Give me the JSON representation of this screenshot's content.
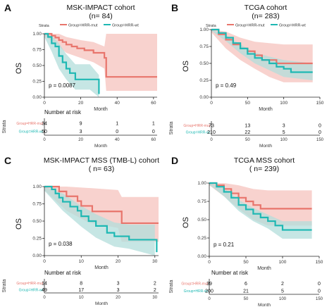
{
  "colors": {
    "mut": "#E8756C",
    "wt": "#1EB8B3",
    "mut_band": "#F6C3BD",
    "wt_band": "#B3DEDB"
  },
  "chart_data": [
    {
      "type": "line",
      "panel_label": "A",
      "title": "MSK-IMPACT cohort",
      "subtitle": "(n= 84)",
      "xlabel": "Month",
      "ylabel": "OS",
      "xlim": [
        0,
        62
      ],
      "ylim": [
        0,
        1
      ],
      "x_ticks": [
        "0",
        "20",
        "40",
        "60"
      ],
      "x_tick_values": [
        0,
        20,
        40,
        60
      ],
      "y_ticks": [
        "0.00",
        "0.25",
        "0.50",
        "0.75",
        "1.00"
      ],
      "legend_title": "Strata",
      "legend_entries": [
        "Group=HRR-mut",
        "Group=HRR-wt"
      ],
      "p_value": "p = 0.0087",
      "series": [
        {
          "name": "Group=HRR-mut",
          "color_key": "mut",
          "points": [
            [
              0,
              1
            ],
            [
              4,
              0.97
            ],
            [
              6,
              0.94
            ],
            [
              8,
              0.9
            ],
            [
              10,
              0.87
            ],
            [
              12,
              0.83
            ],
            [
              15,
              0.8
            ],
            [
              18,
              0.77
            ],
            [
              22,
              0.74
            ],
            [
              27,
              0.7
            ],
            [
              33,
              0.62
            ],
            [
              34,
              0.32
            ],
            [
              62,
              0.32
            ]
          ],
          "band_upper": [
            [
              0,
              1
            ],
            [
              8,
              1
            ],
            [
              12,
              0.95
            ],
            [
              20,
              0.9
            ],
            [
              27,
              0.87
            ],
            [
              33,
              0.8
            ],
            [
              34,
              1
            ],
            [
              62,
              1
            ]
          ],
          "band_lower": [
            [
              0,
              0.97
            ],
            [
              8,
              0.8
            ],
            [
              12,
              0.7
            ],
            [
              20,
              0.62
            ],
            [
              27,
              0.55
            ],
            [
              33,
              0.45
            ],
            [
              34,
              0.1
            ],
            [
              62,
              0.1
            ]
          ]
        },
        {
          "name": "Group=HRR-wt",
          "color_key": "wt",
          "points": [
            [
              0,
              1
            ],
            [
              2,
              0.95
            ],
            [
              4,
              0.85
            ],
            [
              6,
              0.8
            ],
            [
              8,
              0.65
            ],
            [
              10,
              0.55
            ],
            [
              12,
              0.45
            ],
            [
              14,
              0.38
            ],
            [
              17,
              0.28
            ],
            [
              25,
              0.28
            ],
            [
              30,
              0.05
            ]
          ],
          "band_upper": [
            [
              0,
              1
            ],
            [
              4,
              0.97
            ],
            [
              8,
              0.85
            ],
            [
              12,
              0.68
            ],
            [
              17,
              0.52
            ],
            [
              25,
              0.52
            ],
            [
              30,
              0.35
            ]
          ],
          "band_lower": [
            [
              0,
              0.95
            ],
            [
              4,
              0.72
            ],
            [
              8,
              0.45
            ],
            [
              12,
              0.28
            ],
            [
              17,
              0.12
            ],
            [
              25,
              0.12
            ],
            [
              30,
              0
            ]
          ]
        }
      ],
      "risk_table": {
        "title": "Number at risk",
        "row_labels": [
          "Group=HRR-mut",
          "Group=HRR-wt"
        ],
        "rows": [
          [
            "34",
            "9",
            "1",
            "1"
          ],
          [
            "50",
            "3",
            "0",
            "0"
          ]
        ],
        "xlabel": "Month",
        "ylabel": "Strata"
      }
    },
    {
      "type": "line",
      "panel_label": "B",
      "title": "TCGA cohort",
      "subtitle": "(n= 283)",
      "xlabel": "Month",
      "ylabel": "OS",
      "xlim": [
        0,
        150
      ],
      "ylim": [
        0,
        1
      ],
      "x_ticks": [
        "0",
        "50",
        "100",
        "150"
      ],
      "x_tick_values": [
        0,
        50,
        100,
        150
      ],
      "y_ticks": [
        "0.00",
        "0.25",
        "0.50",
        "0.75",
        "1.00"
      ],
      "legend_title": "Strata",
      "legend_entries": [
        "Group=HRR-mut",
        "Group=HRR-wt"
      ],
      "p_value": "p = 0.49",
      "series": [
        {
          "name": "Group=HRR-mut",
          "color_key": "mut",
          "points": [
            [
              0,
              1
            ],
            [
              10,
              0.93
            ],
            [
              20,
              0.85
            ],
            [
              30,
              0.78
            ],
            [
              40,
              0.72
            ],
            [
              50,
              0.68
            ],
            [
              60,
              0.62
            ],
            [
              70,
              0.55
            ],
            [
              80,
              0.55
            ],
            [
              90,
              0.5
            ],
            [
              140,
              0.5
            ]
          ],
          "band_upper": [
            [
              0,
              1
            ],
            [
              20,
              0.97
            ],
            [
              40,
              0.88
            ],
            [
              60,
              0.82
            ],
            [
              80,
              0.8
            ],
            [
              100,
              0.78
            ],
            [
              140,
              0.78
            ]
          ],
          "band_lower": [
            [
              0,
              0.96
            ],
            [
              20,
              0.72
            ],
            [
              40,
              0.55
            ],
            [
              60,
              0.42
            ],
            [
              80,
              0.3
            ],
            [
              100,
              0.22
            ],
            [
              140,
              0.22
            ]
          ]
        },
        {
          "name": "Group=HRR-wt",
          "color_key": "wt",
          "points": [
            [
              0,
              1
            ],
            [
              10,
              0.95
            ],
            [
              20,
              0.88
            ],
            [
              30,
              0.8
            ],
            [
              40,
              0.72
            ],
            [
              50,
              0.64
            ],
            [
              60,
              0.58
            ],
            [
              70,
              0.55
            ],
            [
              80,
              0.5
            ],
            [
              90,
              0.45
            ],
            [
              100,
              0.42
            ],
            [
              110,
              0.37
            ],
            [
              140,
              0.37
            ]
          ],
          "band_upper": [
            [
              0,
              1
            ],
            [
              20,
              0.92
            ],
            [
              40,
              0.78
            ],
            [
              60,
              0.66
            ],
            [
              80,
              0.6
            ],
            [
              100,
              0.55
            ],
            [
              140,
              0.5
            ]
          ],
          "band_lower": [
            [
              0,
              0.98
            ],
            [
              20,
              0.83
            ],
            [
              40,
              0.65
            ],
            [
              60,
              0.5
            ],
            [
              80,
              0.4
            ],
            [
              100,
              0.3
            ],
            [
              140,
              0.25
            ]
          ]
        }
      ],
      "risk_table": {
        "title": "",
        "row_labels": [
          "Group=HRR-mut",
          "Group=HRR-wt"
        ],
        "rows": [
          [
            "73",
            "13",
            "3",
            "0"
          ],
          [
            "210",
            "22",
            "5",
            "0"
          ]
        ],
        "xlabel": "Month",
        "ylabel": "Strata"
      }
    },
    {
      "type": "line",
      "panel_label": "C",
      "title": "MSK-IMPACT MSS (TMB-L) cohort",
      "subtitle": "( n= 63)",
      "xlabel": "Month",
      "ylabel": "OS",
      "xlim": [
        0,
        31
      ],
      "ylim": [
        0,
        1
      ],
      "x_ticks": [
        "0",
        "10",
        "20",
        "30"
      ],
      "x_tick_values": [
        0,
        10,
        20,
        30
      ],
      "y_ticks": [
        "0.00",
        "0.25",
        "0.50",
        "0.75",
        "1.00"
      ],
      "legend_title": "",
      "legend_entries": [],
      "p_value": "p = 0.038",
      "series": [
        {
          "name": "Group=HRR-mut",
          "color_key": "mut",
          "points": [
            [
              0,
              1
            ],
            [
              3,
              1
            ],
            [
              4,
              0.93
            ],
            [
              6,
              0.86
            ],
            [
              9,
              0.79
            ],
            [
              10,
              0.72
            ],
            [
              12,
              0.72
            ],
            [
              13,
              0.64
            ],
            [
              20,
              0.64
            ],
            [
              21,
              0.47
            ],
            [
              31,
              0.47
            ]
          ],
          "band_upper": [
            [
              0,
              1
            ],
            [
              6,
              1
            ],
            [
              12,
              0.98
            ],
            [
              20,
              0.95
            ],
            [
              21,
              0.85
            ],
            [
              31,
              0.85
            ]
          ],
          "band_lower": [
            [
              0,
              0.95
            ],
            [
              6,
              0.65
            ],
            [
              12,
              0.48
            ],
            [
              20,
              0.4
            ],
            [
              21,
              0.2
            ],
            [
              31,
              0.2
            ]
          ]
        },
        {
          "name": "Group=HRR-wt",
          "color_key": "wt",
          "points": [
            [
              0,
              1
            ],
            [
              2,
              0.96
            ],
            [
              3,
              0.9
            ],
            [
              4,
              0.84
            ],
            [
              5,
              0.78
            ],
            [
              7,
              0.71
            ],
            [
              9,
              0.65
            ],
            [
              10,
              0.57
            ],
            [
              12,
              0.5
            ],
            [
              14,
              0.43
            ],
            [
              17,
              0.33
            ],
            [
              19,
              0.28
            ],
            [
              22,
              0.28
            ],
            [
              23,
              0.23
            ],
            [
              30,
              0.23
            ],
            [
              30.5,
              0.05
            ]
          ],
          "band_upper": [
            [
              0,
              1
            ],
            [
              5,
              0.9
            ],
            [
              10,
              0.72
            ],
            [
              14,
              0.6
            ],
            [
              19,
              0.48
            ],
            [
              23,
              0.45
            ],
            [
              30,
              0.45
            ]
          ],
          "band_lower": [
            [
              0,
              0.94
            ],
            [
              5,
              0.65
            ],
            [
              10,
              0.42
            ],
            [
              14,
              0.26
            ],
            [
              19,
              0.13
            ],
            [
              23,
              0.1
            ],
            [
              30,
              0
            ]
          ]
        }
      ],
      "risk_table": {
        "title": "Number at risk",
        "row_labels": [
          "Group=HRR-mut",
          "Group=HRR-wt"
        ],
        "rows": [
          [
            "14",
            "8",
            "3",
            "2"
          ],
          [
            "49",
            "17",
            "3",
            "2"
          ]
        ],
        "xlabel": "Month",
        "ylabel": "Strata"
      }
    },
    {
      "type": "line",
      "panel_label": "D",
      "title": "TCGA MSS cohort",
      "subtitle": "( n= 239)",
      "xlabel": "Month",
      "ylabel": "OS",
      "xlim": [
        0,
        150
      ],
      "ylim": [
        0,
        1
      ],
      "x_ticks": [
        "0",
        "50",
        "100",
        "150"
      ],
      "x_tick_values": [
        0,
        50,
        100,
        150
      ],
      "y_ticks": [
        "0.00",
        "0.25",
        "0.50",
        "0.75",
        "1.00"
      ],
      "legend_title": "",
      "legend_entries": [],
      "p_value": "p = 0.21",
      "series": [
        {
          "name": "Group=HRR-mut",
          "color_key": "mut",
          "points": [
            [
              0,
              1
            ],
            [
              10,
              0.97
            ],
            [
              20,
              0.92
            ],
            [
              30,
              0.86
            ],
            [
              40,
              0.8
            ],
            [
              50,
              0.75
            ],
            [
              60,
              0.7
            ],
            [
              70,
              0.65
            ],
            [
              140,
              0.65
            ]
          ],
          "band_upper": [
            [
              0,
              1
            ],
            [
              20,
              1
            ],
            [
              40,
              0.97
            ],
            [
              60,
              0.92
            ],
            [
              80,
              0.9
            ],
            [
              140,
              0.9
            ]
          ],
          "band_lower": [
            [
              0,
              0.97
            ],
            [
              20,
              0.82
            ],
            [
              40,
              0.65
            ],
            [
              60,
              0.5
            ],
            [
              80,
              0.42
            ],
            [
              140,
              0.42
            ]
          ]
        },
        {
          "name": "Group=HRR-wt",
          "color_key": "wt",
          "points": [
            [
              0,
              1
            ],
            [
              10,
              0.95
            ],
            [
              20,
              0.88
            ],
            [
              30,
              0.8
            ],
            [
              40,
              0.7
            ],
            [
              50,
              0.64
            ],
            [
              60,
              0.58
            ],
            [
              70,
              0.53
            ],
            [
              80,
              0.48
            ],
            [
              90,
              0.42
            ],
            [
              100,
              0.36
            ],
            [
              140,
              0.36
            ]
          ],
          "band_upper": [
            [
              0,
              1
            ],
            [
              20,
              0.93
            ],
            [
              40,
              0.77
            ],
            [
              60,
              0.66
            ],
            [
              80,
              0.57
            ],
            [
              100,
              0.48
            ],
            [
              140,
              0.48
            ]
          ],
          "band_lower": [
            [
              0,
              0.98
            ],
            [
              20,
              0.82
            ],
            [
              40,
              0.62
            ],
            [
              60,
              0.48
            ],
            [
              80,
              0.38
            ],
            [
              100,
              0.24
            ],
            [
              140,
              0.24
            ]
          ]
        }
      ],
      "risk_table": {
        "title": "Number at risk",
        "row_labels": [
          "Group=HRR-mut",
          "Group=HRR-wt"
        ],
        "rows": [
          [
            "39",
            "6",
            "2",
            "0"
          ],
          [
            "200",
            "21",
            "5",
            "0"
          ]
        ],
        "xlabel": "Month",
        "ylabel": "Strata"
      }
    }
  ]
}
